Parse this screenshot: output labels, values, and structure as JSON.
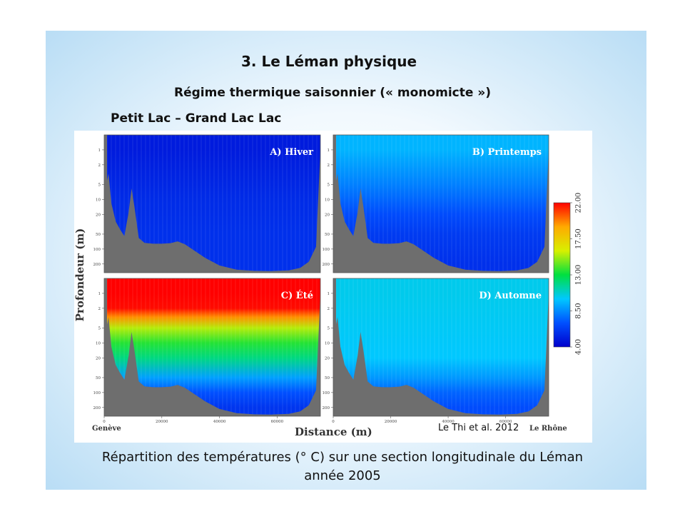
{
  "slide": {
    "title": "3. Le Léman physique",
    "subtitle": "Régime thermique saisonnier (« monomicte »)",
    "section": "Petit Lac – Grand Lac Lac",
    "caption_line1": "Répartition des températures (° C) sur une section longitudinale du Léman",
    "caption_line2": "année 2005",
    "credit": "Le Thi et al. 2012"
  },
  "chart_data": {
    "type": "heatmap",
    "ylabel": "Profondeur (m)",
    "xlabel": "Distance (m)",
    "x_ticks": [
      "0",
      "20000",
      "40000",
      "60000"
    ],
    "x_tick_values": [
      0,
      20000,
      40000,
      60000
    ],
    "xlim": [
      0,
      75000
    ],
    "y_ticks": [
      "1",
      "2",
      "5",
      "10",
      "20",
      "50",
      "100",
      "200"
    ],
    "y_tick_values": [
      1,
      2,
      5,
      10,
      20,
      50,
      100,
      200
    ],
    "ylim": [
      0.5,
      300
    ],
    "y_scale": "log",
    "x_end_labels": [
      "Genève",
      "Le Rhône"
    ],
    "colorbar": {
      "min": 4.0,
      "max": 22.0,
      "ticks": [
        "4.00",
        "8.50",
        "13.00",
        "17.50",
        "22.00"
      ],
      "tick_values": [
        4.0,
        8.5,
        13.0,
        17.5,
        22.0
      ],
      "colors": [
        "#0000cc",
        "#0050ff",
        "#00c8ff",
        "#00e040",
        "#d8f000",
        "#ffaa00",
        "#ff0000"
      ]
    },
    "panels": [
      {
        "label": "A) Hiver",
        "temperature_profile": [
          {
            "depth": 1,
            "temp": 5.0
          },
          {
            "depth": 10,
            "temp": 5.6
          },
          {
            "depth": 50,
            "temp": 5.8
          },
          {
            "depth": 200,
            "temp": 5.8
          }
        ]
      },
      {
        "label": "B) Printemps",
        "temperature_profile": [
          {
            "depth": 1,
            "temp": 9.5
          },
          {
            "depth": 5,
            "temp": 8.2
          },
          {
            "depth": 20,
            "temp": 6.8
          },
          {
            "depth": 50,
            "temp": 6.2
          },
          {
            "depth": 200,
            "temp": 5.8
          }
        ]
      },
      {
        "label": "C) Été",
        "temperature_profile": [
          {
            "depth": 1,
            "temp": 22.0
          },
          {
            "depth": 2,
            "temp": 21.8
          },
          {
            "depth": 3,
            "temp": 19.5
          },
          {
            "depth": 5,
            "temp": 15.5
          },
          {
            "depth": 10,
            "temp": 13.5
          },
          {
            "depth": 20,
            "temp": 12.0
          },
          {
            "depth": 50,
            "temp": 9.0
          },
          {
            "depth": 100,
            "temp": 7.0
          },
          {
            "depth": 200,
            "temp": 6.0
          }
        ]
      },
      {
        "label": "D) Automne",
        "temperature_profile": [
          {
            "depth": 1,
            "temp": 10.3
          },
          {
            "depth": 20,
            "temp": 10.0
          },
          {
            "depth": 50,
            "temp": 8.8
          },
          {
            "depth": 100,
            "temp": 7.5
          },
          {
            "depth": 200,
            "temp": 6.8
          }
        ]
      }
    ]
  }
}
